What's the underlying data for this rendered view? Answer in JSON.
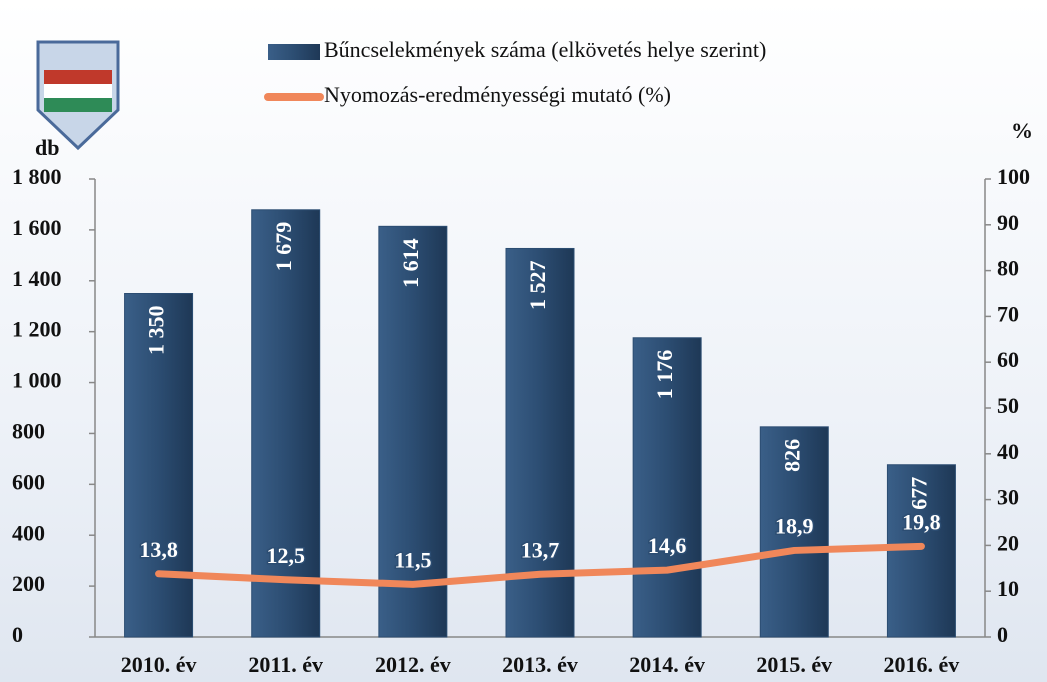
{
  "chart_data": {
    "type": "bar",
    "y_label": "db",
    "y2_label": "%",
    "categories": [
      "2010. év",
      "2011. év",
      "2012. év",
      "2013. év",
      "2014. év",
      "2015. év",
      "2016. év"
    ],
    "series": [
      {
        "name": "Bűncselekmények száma (elkövetés helye szerint)",
        "type": "bar",
        "color": "#2c4d72",
        "values": [
          1350,
          1679,
          1614,
          1527,
          1176,
          826,
          677
        ],
        "value_labels": [
          "1 350",
          "1 679",
          "1 614",
          "1 527",
          "1 176",
          "826",
          "677"
        ]
      },
      {
        "name": "Nyomozás-eredményességi mutató (%)",
        "type": "line",
        "axis": "y2",
        "color": "#f0875a",
        "values": [
          13.8,
          12.5,
          11.5,
          13.7,
          14.6,
          18.9,
          19.8
        ],
        "value_labels": [
          "13,8",
          "12,5",
          "11,5",
          "13,7",
          "14,6",
          "18,9",
          "19,8"
        ]
      }
    ],
    "ylim": [
      0,
      1800
    ],
    "yticks": [
      0,
      200,
      400,
      600,
      800,
      {
        "value": 1000,
        "label": "1 000"
      },
      {
        "value": 1200,
        "label": "1 200"
      },
      {
        "value": 1400,
        "label": "1 400"
      },
      {
        "value": 1600,
        "label": "1 600"
      },
      {
        "value": 1800,
        "label": "1 800"
      }
    ],
    "y2lim": [
      0,
      100
    ],
    "y2ticks": [
      0,
      10,
      20,
      30,
      40,
      50,
      60,
      70,
      80,
      90,
      100
    ]
  }
}
